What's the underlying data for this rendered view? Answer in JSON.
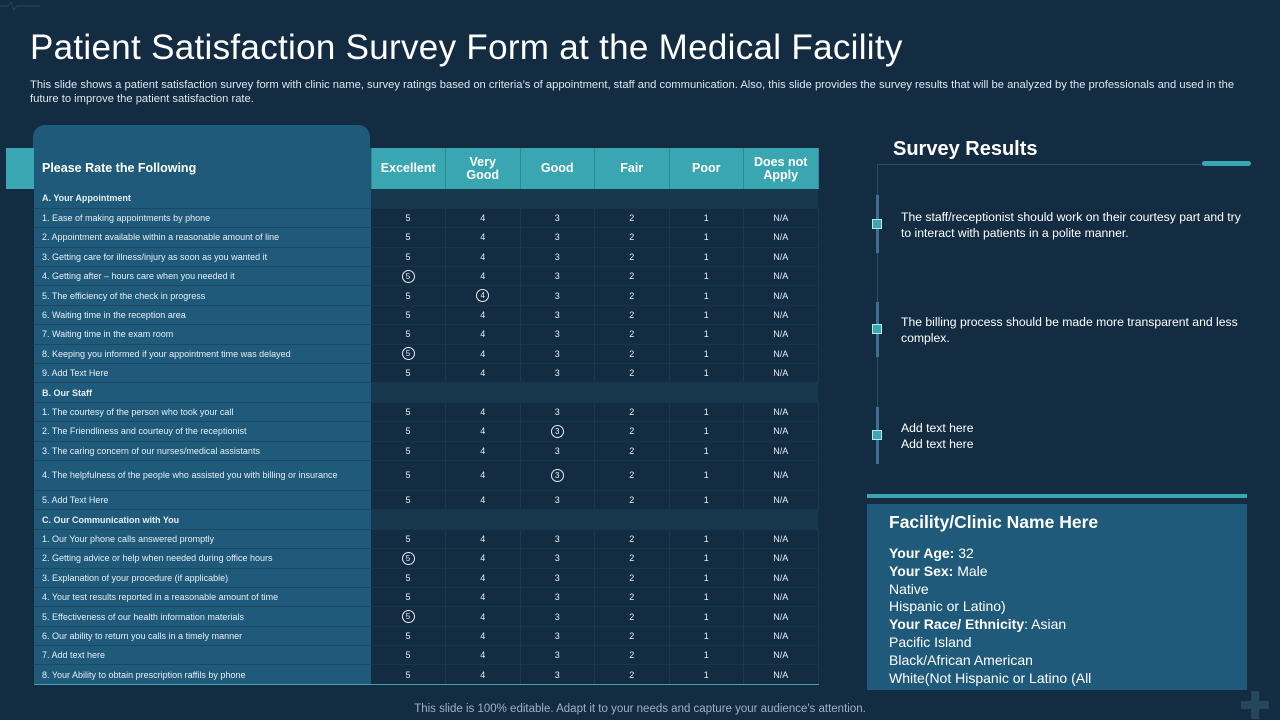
{
  "title": "Patient Satisfaction Survey Form at the Medical Facility",
  "description": "This slide shows a patient satisfaction survey form with clinic name, survey ratings based on criteria’s of appointment, staff and communication. Also, this slide provides the survey results that will be analyzed by the professionals and used in the future to improve the patient satisfaction rate.",
  "table": {
    "header_label": "Please Rate the Following",
    "options": [
      "Excellent",
      "Very Good",
      "Good",
      "Fair",
      "Poor",
      "Does not Apply"
    ],
    "values": [
      "5",
      "4",
      "3",
      "2",
      "1",
      "N/A"
    ],
    "sections": [
      {
        "name": "A.  Your Appointment",
        "rows": [
          {
            "label": "1. Ease of making appointments by phone",
            "circled": -1
          },
          {
            "label": "2. Appointment available within a reasonable amount of line",
            "circled": -1
          },
          {
            "label": "3. Getting care for illness/injury as soon as you wanted it",
            "circled": -1
          },
          {
            "label": "4. Getting after – hours care when  you needed it",
            "circled": 0
          },
          {
            "label": "5. The  efficiency of the check in progress",
            "circled": 1
          },
          {
            "label": "6. Waiting time in the reception area",
            "circled": -1
          },
          {
            "label": "7. Waiting time in the exam room",
            "circled": -1
          },
          {
            "label": "8. Keeping  you informed if your appointment time was delayed",
            "circled": 0
          },
          {
            "label": "9. Add Text Here",
            "circled": -1
          }
        ]
      },
      {
        "name": "B. Our Staff",
        "rows": [
          {
            "label": "1. The  courtesy of the person who  took your call",
            "circled": -1
          },
          {
            "label": "2. The Friendliness and courteuy of the receptionist",
            "circled": 2
          },
          {
            "label": "3. The  caring concern of our nurses/medical assistants",
            "circled": -1
          },
          {
            "label": "4. The  helpfulness of the people who  assisted you with billing or insurance",
            "circled": 2,
            "tall": true
          },
          {
            "label": "5. Add Text Here",
            "circled": -1
          }
        ]
      },
      {
        "name": "C. Our Communication with You",
        "rows": [
          {
            "label": "1. Our  Your phone  calls answered  promptly",
            "circled": -1
          },
          {
            "label": "2. Getting advice or help when  needed during office hours",
            "circled": 0
          },
          {
            "label": "3. Explanation  of your procedure (if applicable)",
            "circled": -1
          },
          {
            "label": "4. Your test results reported in a reasonable amount of time",
            "circled": -1
          },
          {
            "label": "5. Effectiveness of our health information materials",
            "circled": 0
          },
          {
            "label": "6. Our  ability to return  you calls in a timely manner",
            "circled": -1
          },
          {
            "label": "7. Add  text here",
            "circled": -1
          },
          {
            "label": "8. Your Ability to obtain prescription raffils by phone",
            "circled": -1
          }
        ]
      }
    ]
  },
  "results": {
    "title": "Survey Results",
    "items": [
      "The staff/receptionist  should work on their courtesy part and try to interact with patients in a polite manner.",
      "The billing process should be made more transparent and less complex.",
      "Add text here\nAdd text here"
    ]
  },
  "facility": {
    "title": "Facility/Clinic Name Here",
    "age_label": "Your Age:",
    "age_value": " 32",
    "sex_label": "Your Sex:",
    "sex_value": " Male",
    "line_native": "Native",
    "line_hispanic": "Hispanic or Latino)",
    "race_label": "Your Race/ Ethnicity",
    "race_value": ": Asian",
    "line_pacific": "Pacific Island",
    "line_black": "Black/African American",
    "line_white": "White(Not Hispanic or Latino (All"
  },
  "footer": "This slide is 100% editable. Adapt it to your needs and capture your audience's attention.",
  "colors": {
    "background": "#132c42",
    "accent": "#3aa6b2",
    "panel": "#1f5a7a"
  }
}
